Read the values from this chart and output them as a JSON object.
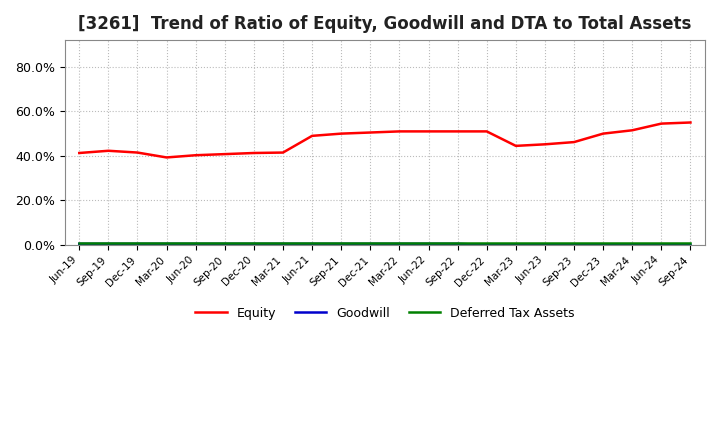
{
  "title": "[3261]  Trend of Ratio of Equity, Goodwill and DTA to Total Assets",
  "ylim": [
    0.0,
    0.92
  ],
  "yticks": [
    0.0,
    0.2,
    0.4,
    0.6,
    0.8
  ],
  "ytick_labels": [
    "0.0%",
    "20.0%",
    "40.0%",
    "60.0%",
    "80.0%"
  ],
  "x_labels": [
    "Jun-19",
    "Sep-19",
    "Dec-19",
    "Mar-20",
    "Jun-20",
    "Sep-20",
    "Dec-20",
    "Mar-21",
    "Jun-21",
    "Sep-21",
    "Dec-21",
    "Mar-22",
    "Jun-22",
    "Sep-22",
    "Dec-22",
    "Mar-23",
    "Jun-23",
    "Sep-23",
    "Dec-23",
    "Mar-24",
    "Jun-24",
    "Sep-24"
  ],
  "equity": [
    0.413,
    0.423,
    0.415,
    0.393,
    0.403,
    0.408,
    0.413,
    0.415,
    0.49,
    0.5,
    0.505,
    0.51,
    0.51,
    0.51,
    0.51,
    0.445,
    0.452,
    0.462,
    0.5,
    0.515,
    0.545,
    0.55
  ],
  "goodwill": [
    0.005,
    0.005,
    0.005,
    0.005,
    0.005,
    0.005,
    0.005,
    0.005,
    0.005,
    0.005,
    0.005,
    0.005,
    0.005,
    0.005,
    0.0,
    0.0,
    0.0,
    0.0,
    0.0,
    0.0,
    0.0,
    0.0
  ],
  "dta": [
    0.008,
    0.008,
    0.008,
    0.008,
    0.008,
    0.008,
    0.008,
    0.008,
    0.008,
    0.008,
    0.008,
    0.008,
    0.008,
    0.008,
    0.008,
    0.008,
    0.008,
    0.008,
    0.008,
    0.008,
    0.008,
    0.008
  ],
  "equity_color": "#FF0000",
  "goodwill_color": "#0000CC",
  "dta_color": "#008000",
  "bg_color": "#FFFFFF",
  "plot_bg_color": "#FFFFFF",
  "grid_color": "#BBBBBB",
  "title_fontsize": 12,
  "legend_labels": [
    "Equity",
    "Goodwill",
    "Deferred Tax Assets"
  ]
}
